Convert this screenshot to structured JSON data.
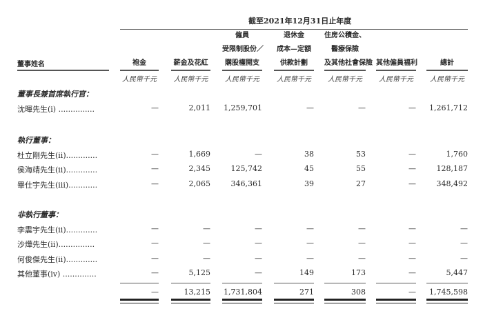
{
  "period_header": "截至2021年12月31日止年度",
  "name_header": "董事姓名",
  "columns": [
    {
      "lines": [
        "",
        "",
        "袍金"
      ],
      "unit": "人民幣千元"
    },
    {
      "lines": [
        "",
        "",
        "薪金及花紅"
      ],
      "unit": "人民幣千元"
    },
    {
      "lines": [
        "僱員",
        "受限制股份／",
        "購股權開支"
      ],
      "unit": "人民幣千元"
    },
    {
      "lines": [
        "退休金",
        "成本—定額",
        "供款計劃"
      ],
      "unit": "人民幣千元"
    },
    {
      "lines": [
        "住房公積金、",
        "醫療保險",
        "及其他社會保險"
      ],
      "unit": "人民幣千元"
    },
    {
      "lines": [
        "",
        "",
        "其他僱員福利"
      ],
      "unit": "人民幣千元"
    },
    {
      "lines": [
        "",
        "",
        "總計"
      ],
      "unit": "人民幣千元"
    }
  ],
  "sections": [
    {
      "title": "董事長兼首席執行官：",
      "rows": [
        {
          "name": "沈暉先生(i) ...............",
          "values": [
            "—",
            "2,011",
            "1,259,701",
            "—",
            "—",
            "—",
            "1,261,712"
          ]
        }
      ]
    },
    {
      "title": "執行董事：",
      "rows": [
        {
          "name": "杜立剛先生(ii).............",
          "values": [
            "—",
            "1,669",
            "—",
            "38",
            "53",
            "—",
            "1,760"
          ]
        },
        {
          "name": "侯海靖先生(ii).............",
          "values": [
            "—",
            "2,345",
            "125,742",
            "45",
            "55",
            "—",
            "128,187"
          ]
        },
        {
          "name": "畢仕宇先生(iii)............",
          "values": [
            "—",
            "2,065",
            "346,361",
            "39",
            "27",
            "—",
            "348,492"
          ]
        }
      ]
    },
    {
      "title": "非執行董事：",
      "rows": [
        {
          "name": "李震宇先生(ii).............",
          "values": [
            "—",
            "—",
            "—",
            "—",
            "—",
            "—",
            "—"
          ]
        },
        {
          "name": "沙燁先生(ii)...............",
          "values": [
            "—",
            "—",
            "—",
            "—",
            "—",
            "—",
            "—"
          ]
        },
        {
          "name": "何俊傑先生(ii).............",
          "values": [
            "—",
            "—",
            "—",
            "—",
            "—",
            "—",
            "—"
          ]
        },
        {
          "name": "其他董事(iv) ..............",
          "values": [
            "—",
            "5,125",
            "—",
            "149",
            "173",
            "—",
            "5,447"
          ]
        }
      ]
    }
  ],
  "totals": [
    "—",
    "13,215",
    "1,731,804",
    "271",
    "308",
    "—",
    "1,745,598"
  ]
}
